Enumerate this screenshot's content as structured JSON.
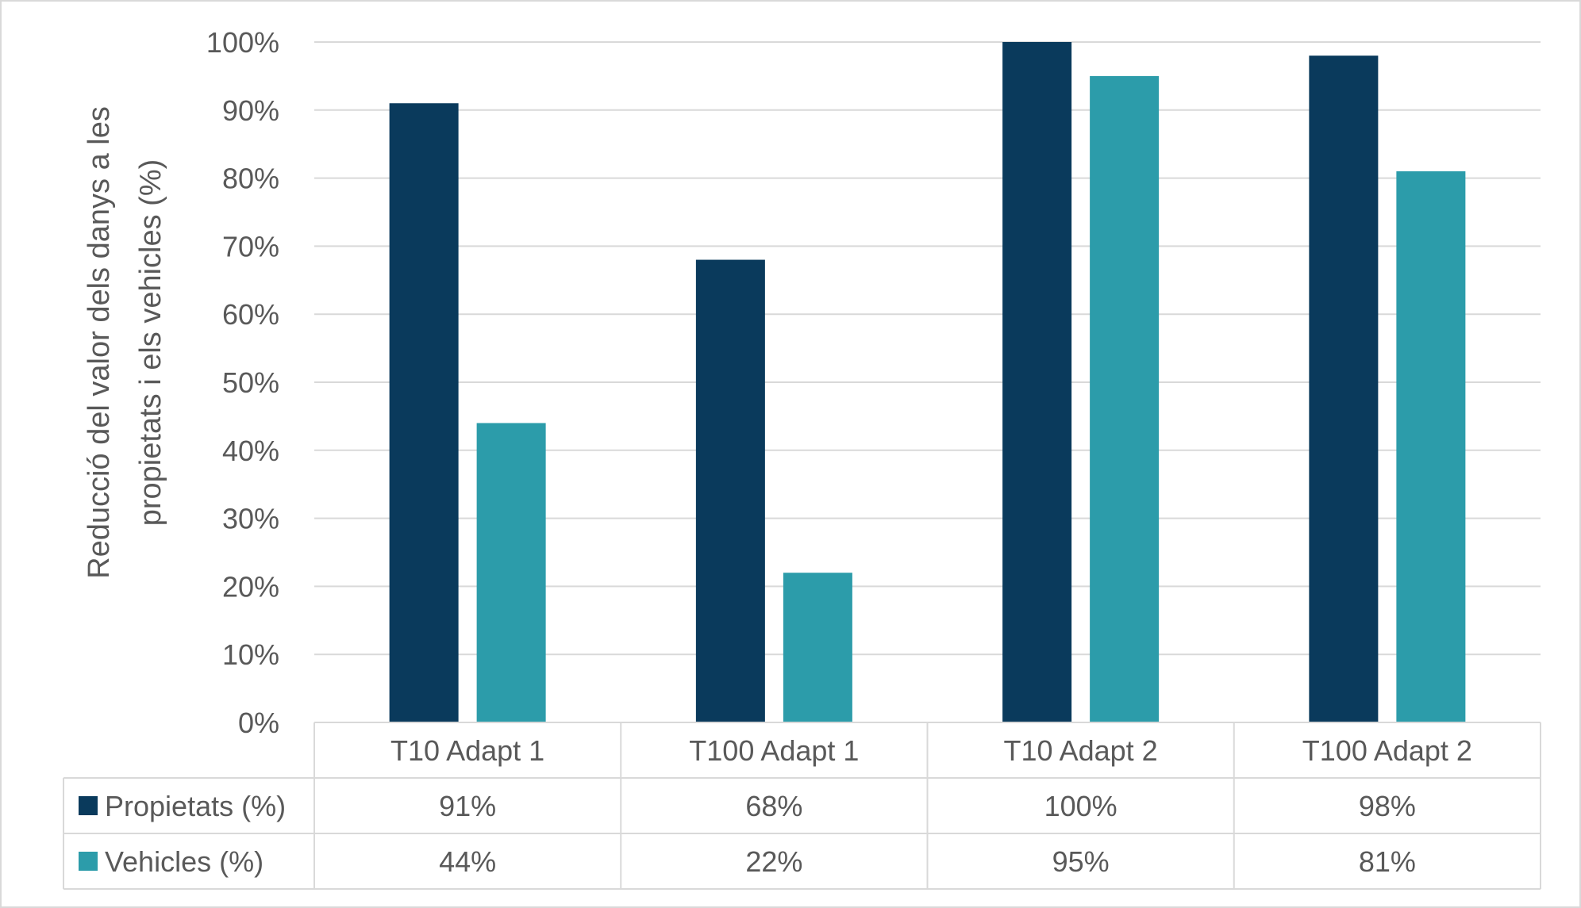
{
  "chart_data": {
    "type": "bar",
    "ylabel_lines": [
      "Reducció del valor dels danys a les",
      "propietats i els vehicles  (%)"
    ],
    "categories": [
      "T10 Adapt 1",
      "T100 Adapt 1",
      "T10 Adapt 2",
      "T100 Adapt 2"
    ],
    "series": [
      {
        "name": "Propietats (%)",
        "values": [
          91,
          68,
          100,
          98
        ],
        "labels": [
          "91%",
          "68%",
          "100%",
          "98%"
        ],
        "color": "#0a3a5c"
      },
      {
        "name": "Vehicles (%)",
        "values": [
          44,
          22,
          95,
          81
        ],
        "labels": [
          "44%",
          "22%",
          "95%",
          "81%"
        ],
        "color": "#2c9caa"
      }
    ],
    "ylim": [
      0,
      100
    ],
    "yticks": [
      0,
      10,
      20,
      30,
      40,
      50,
      60,
      70,
      80,
      90,
      100
    ],
    "ytick_labels": [
      "0%",
      "10%",
      "20%",
      "30%",
      "40%",
      "50%",
      "60%",
      "70%",
      "80%",
      "90%",
      "100%"
    ],
    "grid": true,
    "legend": "data table"
  }
}
